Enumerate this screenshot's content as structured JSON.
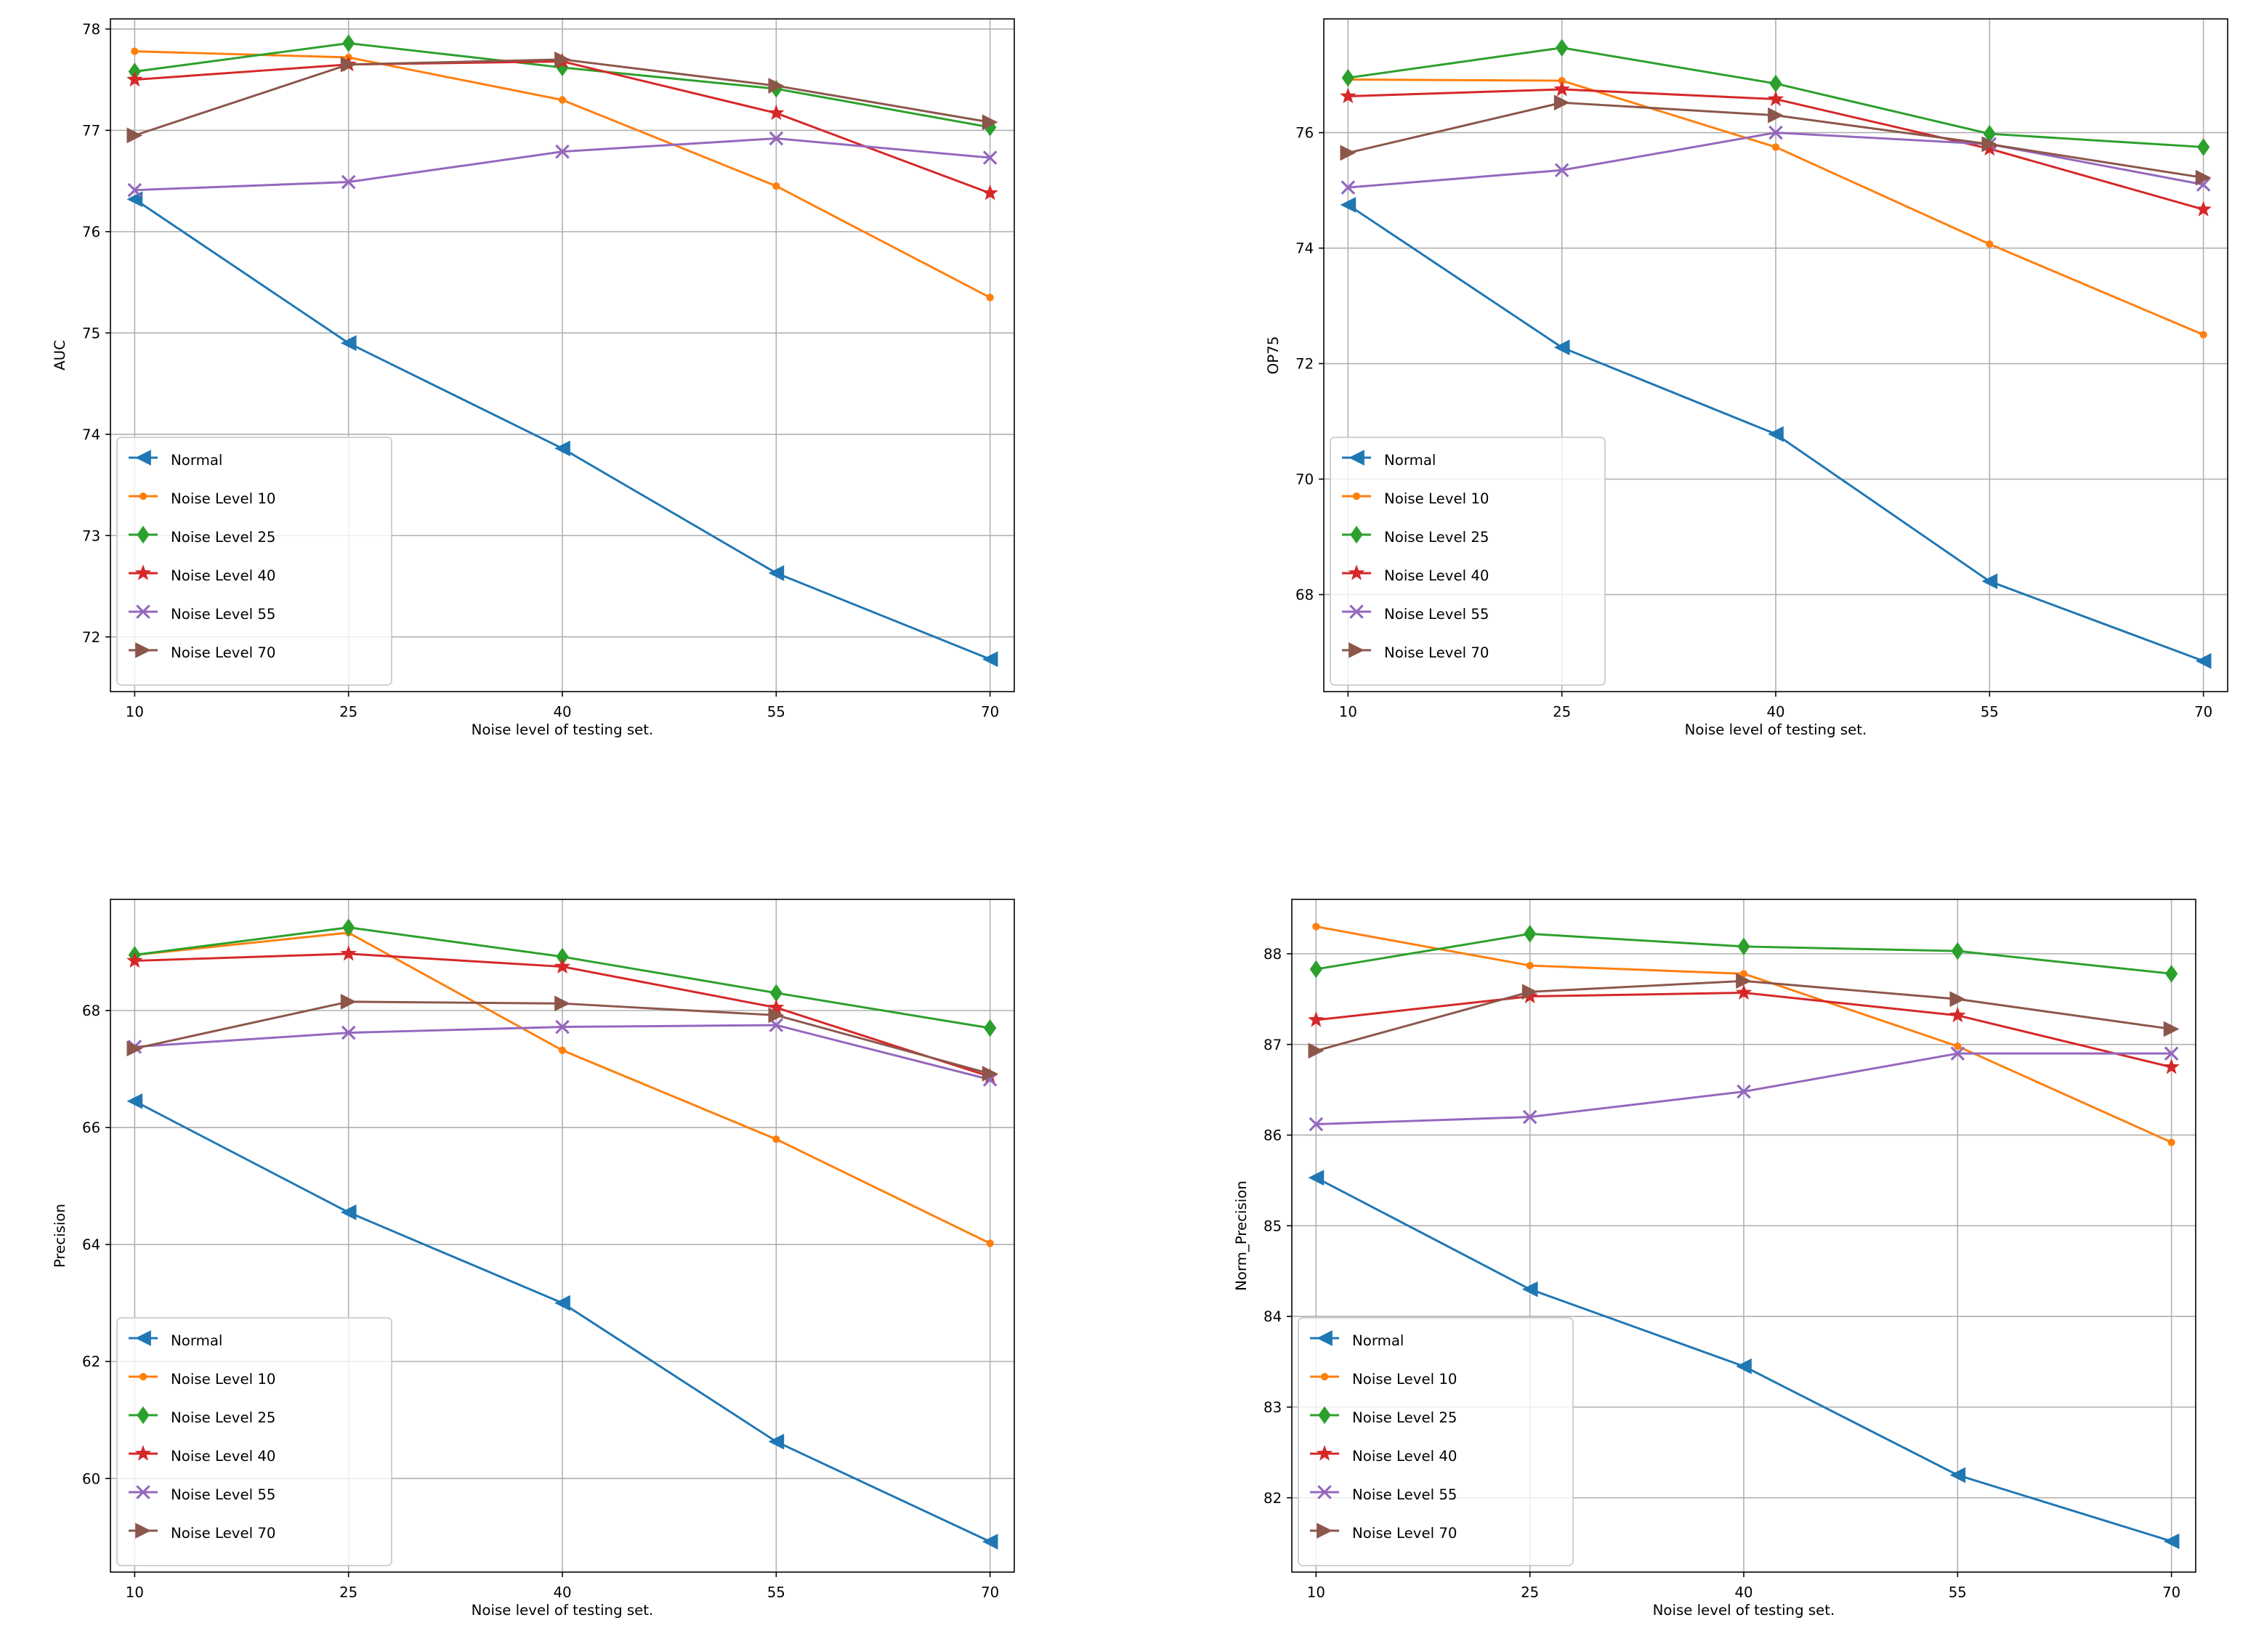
{
  "chart_data": [
    {
      "type": "line",
      "xlabel": "Noise level of testing set.",
      "ylabel": "AUC",
      "x": [
        10,
        25,
        40,
        55,
        70
      ],
      "xticks": [
        "10",
        "25",
        "40",
        "55",
        "70"
      ],
      "yticks": [
        72,
        73,
        74,
        75,
        76,
        77,
        78
      ],
      "xlim": [
        8.3,
        71.7
      ],
      "ylim": [
        71.46,
        78.1
      ],
      "grid": true,
      "legend_position": "lower-left",
      "series": [
        {
          "name": "Normal",
          "color": "#1f77b4",
          "marker": "triangle-left",
          "values": [
            76.32,
            74.9,
            73.86,
            72.63,
            71.78
          ]
        },
        {
          "name": "Noise Level 10",
          "color": "#ff7f0e",
          "marker": "point",
          "values": [
            77.78,
            77.72,
            77.3,
            76.45,
            75.35
          ]
        },
        {
          "name": "Noise Level 25",
          "color": "#2ca02c",
          "marker": "diamond",
          "values": [
            77.58,
            77.86,
            77.62,
            77.41,
            77.03
          ]
        },
        {
          "name": "Noise Level 40",
          "color": "#d62728",
          "marker": "star",
          "values": [
            77.5,
            77.65,
            77.68,
            77.17,
            76.38
          ]
        },
        {
          "name": "Noise Level 55",
          "color": "#9467bd",
          "marker": "x",
          "values": [
            76.41,
            76.49,
            76.79,
            76.92,
            76.73
          ]
        },
        {
          "name": "Noise Level 70",
          "color": "#8c564b",
          "marker": "triangle-right",
          "values": [
            76.95,
            77.65,
            77.7,
            77.44,
            77.08
          ]
        }
      ]
    },
    {
      "type": "line",
      "xlabel": "Noise level of testing set.",
      "ylabel": "OP75",
      "x": [
        10,
        25,
        40,
        55,
        70
      ],
      "xticks": [
        "10",
        "25",
        "40",
        "55",
        "70"
      ],
      "yticks": [
        68,
        70,
        72,
        74,
        76
      ],
      "xlim": [
        8.3,
        71.7
      ],
      "ylim": [
        66.32,
        77.97
      ],
      "grid": true,
      "legend_position": "lower-left",
      "series": [
        {
          "name": "Normal",
          "color": "#1f77b4",
          "marker": "triangle-left",
          "values": [
            74.75,
            72.28,
            70.78,
            68.23,
            66.85
          ]
        },
        {
          "name": "Noise Level 10",
          "color": "#ff7f0e",
          "marker": "point",
          "values": [
            76.92,
            76.9,
            75.75,
            74.07,
            72.5
          ]
        },
        {
          "name": "Noise Level 25",
          "color": "#2ca02c",
          "marker": "diamond",
          "values": [
            76.95,
            77.47,
            76.85,
            75.98,
            75.75
          ]
        },
        {
          "name": "Noise Level 40",
          "color": "#d62728",
          "marker": "star",
          "values": [
            76.63,
            76.75,
            76.58,
            75.72,
            74.67
          ]
        },
        {
          "name": "Noise Level 55",
          "color": "#9467bd",
          "marker": "x",
          "values": [
            75.05,
            75.35,
            76.0,
            75.8,
            75.1
          ]
        },
        {
          "name": "Noise Level 70",
          "color": "#8c564b",
          "marker": "triangle-right",
          "values": [
            75.65,
            76.52,
            76.3,
            75.8,
            75.22
          ]
        }
      ]
    },
    {
      "type": "line",
      "xlabel": "Noise level of testing set.",
      "ylabel": "Precision",
      "x": [
        10,
        25,
        40,
        55,
        70
      ],
      "xticks": [
        "10",
        "25",
        "40",
        "55",
        "70"
      ],
      "yticks": [
        60,
        62,
        64,
        66,
        68
      ],
      "xlim": [
        8.3,
        71.7
      ],
      "ylim": [
        58.4,
        69.9
      ],
      "grid": true,
      "legend_position": "lower-left",
      "series": [
        {
          "name": "Normal",
          "color": "#1f77b4",
          "marker": "triangle-left",
          "values": [
            66.45,
            64.55,
            63.0,
            60.63,
            58.92
          ]
        },
        {
          "name": "Noise Level 10",
          "color": "#ff7f0e",
          "marker": "point",
          "values": [
            68.95,
            69.33,
            67.32,
            65.8,
            64.02
          ]
        },
        {
          "name": "Noise Level 25",
          "color": "#2ca02c",
          "marker": "diamond",
          "values": [
            68.95,
            69.42,
            68.92,
            68.3,
            67.7
          ]
        },
        {
          "name": "Noise Level 40",
          "color": "#d62728",
          "marker": "star",
          "values": [
            68.85,
            68.97,
            68.75,
            68.05,
            66.87
          ]
        },
        {
          "name": "Noise Level 55",
          "color": "#9467bd",
          "marker": "x",
          "values": [
            67.38,
            67.62,
            67.72,
            67.75,
            66.82
          ]
        },
        {
          "name": "Noise Level 70",
          "color": "#8c564b",
          "marker": "triangle-right",
          "values": [
            67.35,
            68.15,
            68.12,
            67.92,
            66.92
          ]
        }
      ]
    },
    {
      "type": "line",
      "xlabel": "Noise level of testing set.",
      "ylabel": "Norm_Precision",
      "x": [
        10,
        25,
        40,
        55,
        70
      ],
      "xticks": [
        "10",
        "25",
        "40",
        "55",
        "70"
      ],
      "yticks": [
        82,
        83,
        84,
        85,
        86,
        87,
        88
      ],
      "xlim": [
        8.3,
        71.7
      ],
      "ylim": [
        81.18,
        88.6
      ],
      "grid": true,
      "legend_position": "lower-left",
      "series": [
        {
          "name": "Normal",
          "color": "#1f77b4",
          "marker": "triangle-left",
          "values": [
            85.53,
            84.3,
            83.45,
            82.25,
            81.52
          ]
        },
        {
          "name": "Noise Level 10",
          "color": "#ff7f0e",
          "marker": "point",
          "values": [
            88.3,
            87.87,
            87.78,
            86.98,
            85.92
          ]
        },
        {
          "name": "Noise Level 25",
          "color": "#2ca02c",
          "marker": "diamond",
          "values": [
            87.83,
            88.22,
            88.08,
            88.03,
            87.78
          ]
        },
        {
          "name": "Noise Level 40",
          "color": "#d62728",
          "marker": "star",
          "values": [
            87.27,
            87.53,
            87.57,
            87.32,
            86.75
          ]
        },
        {
          "name": "Noise Level 55",
          "color": "#9467bd",
          "marker": "x",
          "values": [
            86.12,
            86.2,
            86.48,
            86.9,
            86.9
          ]
        },
        {
          "name": "Noise Level 70",
          "color": "#8c564b",
          "marker": "triangle-right",
          "values": [
            86.93,
            87.58,
            87.7,
            87.5,
            87.17
          ]
        }
      ]
    }
  ]
}
